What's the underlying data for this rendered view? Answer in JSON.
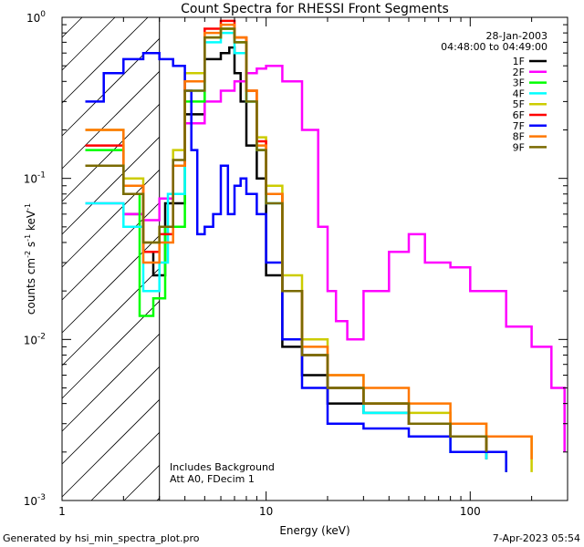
{
  "footer": {
    "generated_by": "Generated by hsi_min_spectra_plot.pro",
    "timestamp": "7-Apr-2023 05:54"
  },
  "chart_data": {
    "type": "line",
    "title": "Count Spectra for RHESSI Front Segments",
    "xlabel": "Energy (keV)",
    "ylabel_parts": [
      "counts cm",
      "-2",
      " s",
      "-1",
      " keV",
      "-1"
    ],
    "xscale": "log",
    "yscale": "log",
    "xlim": [
      1,
      300
    ],
    "ylim": [
      0.001,
      1
    ],
    "x_ticks": [
      {
        "v": 1,
        "label": "1"
      },
      {
        "v": 10,
        "label": "10"
      },
      {
        "v": 100,
        "label": "100"
      }
    ],
    "y_ticks": [
      {
        "v": 1,
        "base": "10",
        "exp": "0"
      },
      {
        "v": 0.1,
        "base": "10",
        "exp": "-1"
      },
      {
        "v": 0.01,
        "base": "10",
        "exp": "-2"
      },
      {
        "v": 0.001,
        "base": "10",
        "exp": "-3"
      }
    ],
    "date": "28-Jan-2003",
    "time_range": "04:48:00 to 04:49:00",
    "annotations": [
      "Includes Background",
      "Att A0, FDecim 1"
    ],
    "hatched_region": {
      "x": [
        1,
        3
      ]
    },
    "legend_position": "top-right",
    "grid": false,
    "series": [
      {
        "name": "1F",
        "color": "#000000",
        "x": [
          2,
          2.5,
          2.8,
          3.2,
          4,
          5,
          6,
          6.6,
          7,
          7.5,
          8,
          9,
          10,
          12,
          15,
          20,
          30,
          50,
          80,
          120
        ],
        "y": [
          0.06,
          0.035,
          0.025,
          0.07,
          0.25,
          0.55,
          0.6,
          0.65,
          0.45,
          0.3,
          0.16,
          0.1,
          0.025,
          0.009,
          0.006,
          0.004,
          0.0035,
          0.003,
          0.0025,
          0.0018
        ]
      },
      {
        "name": "2F",
        "color": "#ff00ff",
        "x": [
          1.3,
          2,
          2.5,
          3,
          3.5,
          4,
          5,
          6,
          7,
          8,
          9,
          10,
          12,
          15,
          18,
          20,
          22,
          25,
          30,
          40,
          50,
          60,
          80,
          100,
          150,
          200,
          250,
          290
        ],
        "y": [
          0.07,
          0.06,
          0.055,
          0.075,
          0.12,
          0.22,
          0.3,
          0.35,
          0.4,
          0.45,
          0.48,
          0.5,
          0.4,
          0.2,
          0.05,
          0.02,
          0.013,
          0.01,
          0.02,
          0.035,
          0.045,
          0.03,
          0.028,
          0.02,
          0.012,
          0.009,
          0.005,
          0.002
        ]
      },
      {
        "name": "3F",
        "color": "#00ff00",
        "x": [
          1.3,
          2,
          2.4,
          2.8,
          3.2,
          4,
          5,
          6,
          7,
          8,
          9,
          10,
          12,
          15,
          20,
          30,
          50,
          80,
          120,
          150
        ],
        "y": [
          0.15,
          0.08,
          0.014,
          0.018,
          0.05,
          0.3,
          0.75,
          0.85,
          0.7,
          0.3,
          0.15,
          0.08,
          0.02,
          0.008,
          0.005,
          0.004,
          0.003,
          0.0025,
          0.002,
          0.0015
        ]
      },
      {
        "name": "4F",
        "color": "#00ffff",
        "x": [
          1.3,
          2,
          2.5,
          3,
          3.3,
          4,
          5,
          6,
          7,
          8,
          9,
          10,
          12,
          15,
          20,
          30,
          50,
          80,
          120
        ],
        "y": [
          0.07,
          0.05,
          0.02,
          0.03,
          0.08,
          0.35,
          0.7,
          0.8,
          0.6,
          0.3,
          0.15,
          0.07,
          0.02,
          0.008,
          0.005,
          0.0035,
          0.003,
          0.002,
          0.0018
        ]
      },
      {
        "name": "5F",
        "color": "#cccc00",
        "x": [
          1.3,
          2,
          2.5,
          3,
          3.5,
          4,
          5,
          6,
          7,
          8,
          9,
          10,
          12,
          15,
          20,
          30,
          50,
          80,
          120,
          200
        ],
        "y": [
          0.2,
          0.1,
          0.04,
          0.05,
          0.15,
          0.45,
          0.75,
          0.85,
          0.75,
          0.35,
          0.18,
          0.09,
          0.025,
          0.01,
          0.006,
          0.004,
          0.0035,
          0.003,
          0.0025,
          0.0015
        ]
      },
      {
        "name": "6F",
        "color": "#ff0000",
        "x": [
          1.3,
          2,
          2.5,
          3,
          3.5,
          4,
          5,
          6,
          7,
          8,
          9,
          10,
          12,
          15,
          20,
          30,
          50,
          80,
          120
        ],
        "y": [
          0.16,
          0.09,
          0.035,
          0.045,
          0.12,
          0.4,
          0.85,
          0.95,
          0.75,
          0.35,
          0.17,
          0.08,
          0.02,
          0.008,
          0.005,
          0.004,
          0.003,
          0.0025,
          0.002
        ]
      },
      {
        "name": "7F",
        "color": "#0000ff",
        "x": [
          1.3,
          1.6,
          2,
          2.5,
          3,
          3.5,
          4,
          4.3,
          4.6,
          5,
          5.5,
          6,
          6.5,
          7,
          7.5,
          8,
          9,
          10,
          12,
          15,
          20,
          30,
          50,
          80,
          150
        ],
        "y": [
          0.3,
          0.45,
          0.55,
          0.6,
          0.55,
          0.5,
          0.35,
          0.15,
          0.045,
          0.05,
          0.06,
          0.12,
          0.06,
          0.09,
          0.1,
          0.08,
          0.06,
          0.03,
          0.01,
          0.005,
          0.003,
          0.0028,
          0.0025,
          0.002,
          0.0015
        ]
      },
      {
        "name": "8F",
        "color": "#ff7700",
        "x": [
          1.3,
          2,
          2.5,
          3,
          3.5,
          4,
          5,
          6,
          7,
          8,
          9,
          10,
          12,
          15,
          20,
          30,
          50,
          80,
          120,
          200
        ],
        "y": [
          0.2,
          0.09,
          0.03,
          0.04,
          0.12,
          0.4,
          0.8,
          0.9,
          0.75,
          0.35,
          0.16,
          0.08,
          0.02,
          0.009,
          0.006,
          0.005,
          0.004,
          0.003,
          0.0025,
          0.0018
        ]
      },
      {
        "name": "9F",
        "color": "#7a6a00",
        "x": [
          1.3,
          2,
          2.5,
          3,
          3.5,
          4,
          5,
          6,
          7,
          8,
          9,
          10,
          12,
          15,
          20,
          30,
          50,
          80,
          120
        ],
        "y": [
          0.12,
          0.08,
          0.04,
          0.05,
          0.13,
          0.35,
          0.75,
          0.85,
          0.7,
          0.3,
          0.15,
          0.07,
          0.02,
          0.008,
          0.005,
          0.004,
          0.003,
          0.0025,
          0.002
        ]
      }
    ]
  }
}
